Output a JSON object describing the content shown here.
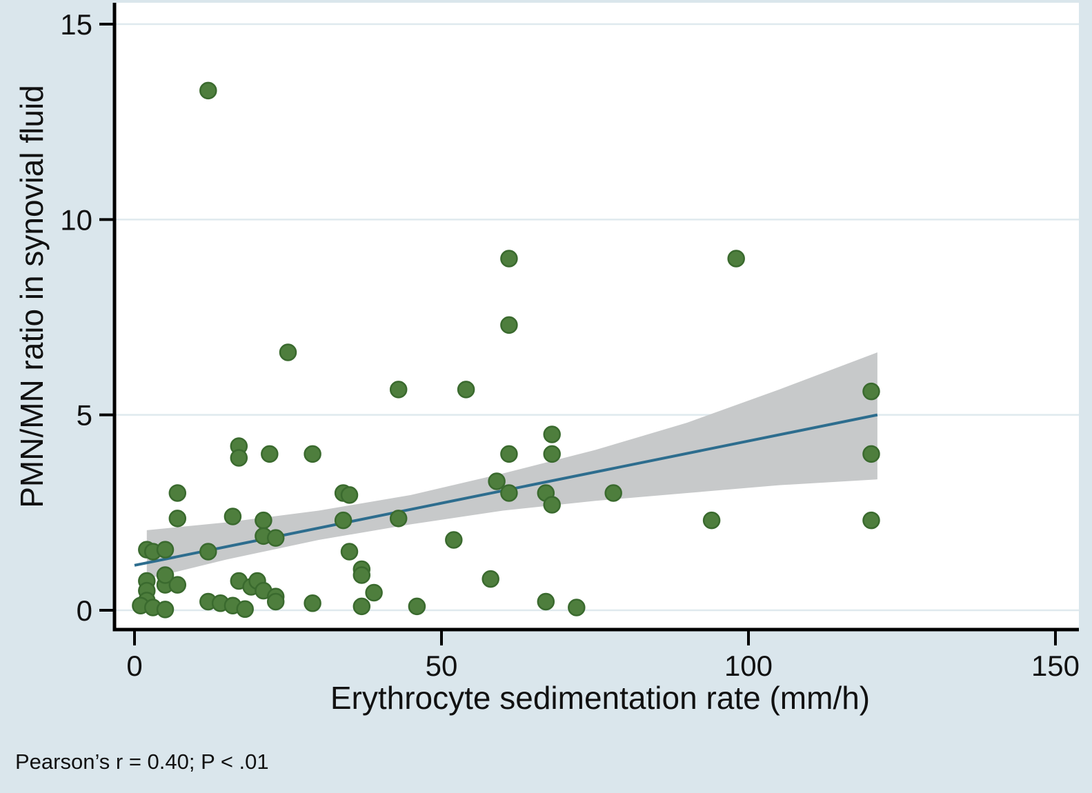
{
  "colors": {
    "background": "#dae6ec",
    "plot_bg": "#ffffff",
    "grid": "#dfe9ee",
    "dot_fill": "#4e7e3d",
    "dot_stroke": "#3a6a2e",
    "line": "#2d6d8e",
    "band": "#c7c9ca",
    "axis": "#000000",
    "text": "#111111"
  },
  "chart_data": {
    "type": "scatter",
    "title": "",
    "xlabel": "Erythrocyte sedimentation rate (mm/h)",
    "ylabel": "PMN/MN ratio in synovial fluid",
    "annotation": "Pearson’s r = 0.40; P < .01",
    "xlim": [
      0,
      150
    ],
    "ylim": [
      0,
      15
    ],
    "x_ticks": [
      0,
      50,
      100,
      150
    ],
    "y_ticks": [
      0,
      5,
      10,
      15
    ],
    "grid": "horizontal",
    "legend": "none",
    "points": [
      [
        2,
        1.55
      ],
      [
        3,
        1.5
      ],
      [
        5,
        1.55
      ],
      [
        2,
        0.75
      ],
      [
        2,
        0.5
      ],
      [
        2,
        0.25
      ],
      [
        1,
        0.12
      ],
      [
        3,
        0.07
      ],
      [
        5,
        0.02
      ],
      [
        5,
        0.65
      ],
      [
        7,
        0.65
      ],
      [
        5,
        0.9
      ],
      [
        7,
        3.0
      ],
      [
        7,
        2.35
      ],
      [
        12,
        13.3
      ],
      [
        12,
        1.5
      ],
      [
        12,
        0.22
      ],
      [
        14,
        0.18
      ],
      [
        16,
        0.12
      ],
      [
        16,
        2.4
      ],
      [
        17,
        4.2
      ],
      [
        17,
        3.9
      ],
      [
        17,
        0.75
      ],
      [
        18,
        0.03
      ],
      [
        19,
        0.6
      ],
      [
        20,
        0.75
      ],
      [
        21,
        2.3
      ],
      [
        21,
        1.9
      ],
      [
        21,
        0.5
      ],
      [
        22,
        4.0
      ],
      [
        23,
        1.85
      ],
      [
        23,
        0.35
      ],
      [
        23,
        0.22
      ],
      [
        25,
        6.6
      ],
      [
        29,
        4.0
      ],
      [
        29,
        0.18
      ],
      [
        34,
        3.0
      ],
      [
        35,
        2.95
      ],
      [
        34,
        2.3
      ],
      [
        35,
        1.5
      ],
      [
        37,
        1.05
      ],
      [
        37,
        0.9
      ],
      [
        37,
        0.1
      ],
      [
        39,
        0.45
      ],
      [
        43,
        5.65
      ],
      [
        43,
        2.35
      ],
      [
        46,
        0.1
      ],
      [
        52,
        1.8
      ],
      [
        54,
        5.65
      ],
      [
        58,
        0.8
      ],
      [
        59,
        3.3
      ],
      [
        61,
        9.0
      ],
      [
        61,
        7.3
      ],
      [
        61,
        4.0
      ],
      [
        61,
        3.0
      ],
      [
        67,
        3.0
      ],
      [
        67,
        0.22
      ],
      [
        68,
        4.5
      ],
      [
        68,
        4.0
      ],
      [
        68,
        2.7
      ],
      [
        72,
        0.07
      ],
      [
        78,
        3.0
      ],
      [
        94,
        2.3
      ],
      [
        98,
        9.0
      ],
      [
        120,
        5.6
      ],
      [
        120,
        4.0
      ],
      [
        120,
        2.3
      ]
    ],
    "regression_line": {
      "x": [
        0,
        121
      ],
      "y": [
        1.15,
        5.0
      ]
    },
    "confidence_band": {
      "x": [
        2,
        15,
        30,
        45,
        60,
        75,
        90,
        105,
        121
      ],
      "upper": [
        2.05,
        2.25,
        2.55,
        2.95,
        3.5,
        4.1,
        4.8,
        5.65,
        6.6
      ],
      "lower": [
        0.8,
        1.3,
        1.8,
        2.2,
        2.55,
        2.8,
        3.0,
        3.2,
        3.35
      ]
    },
    "stats": {
      "pearson_r": "0.40",
      "p_value": "< .01"
    }
  }
}
